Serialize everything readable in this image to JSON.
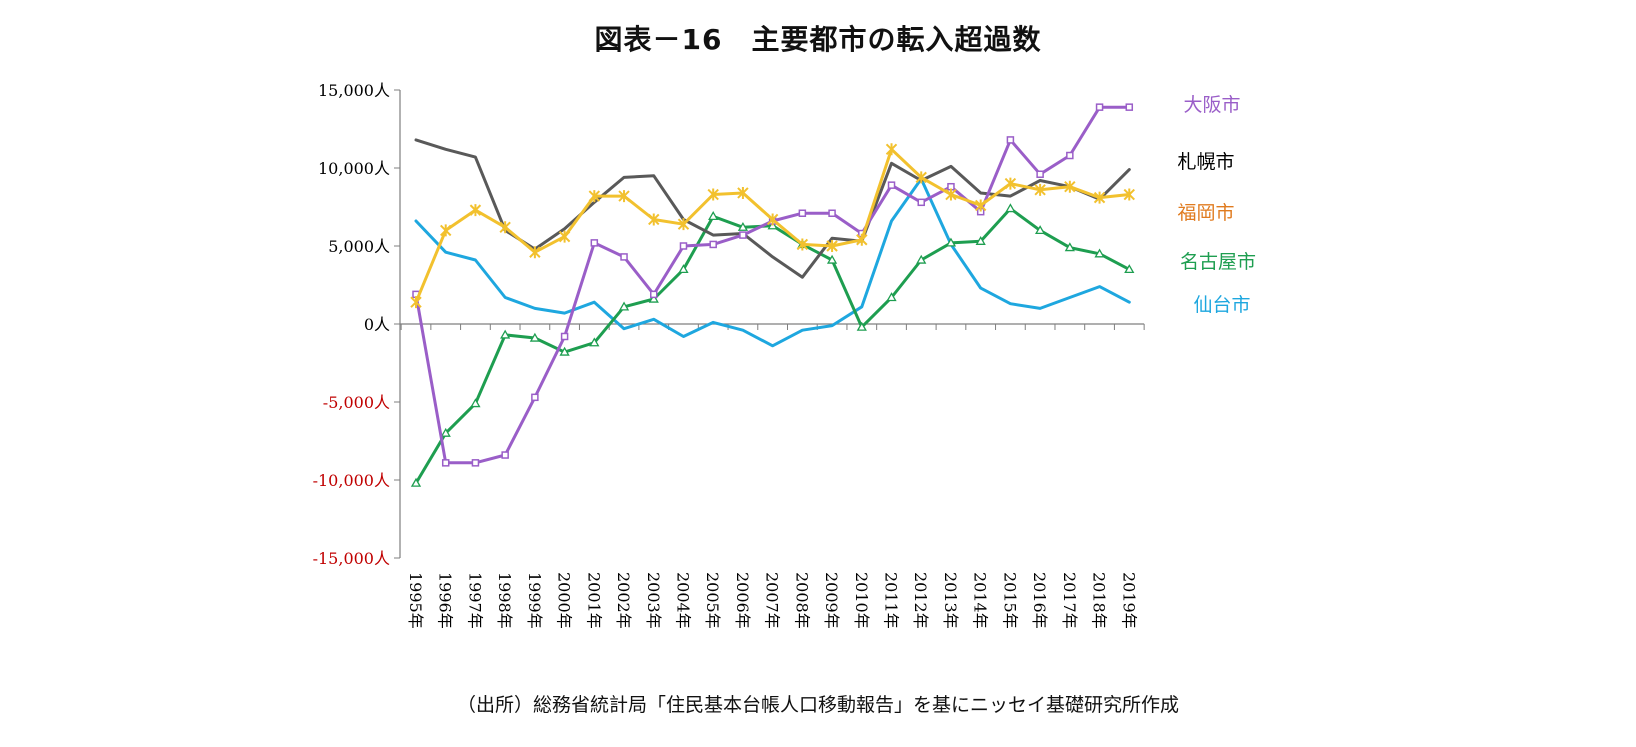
{
  "title": "図表－16　主要都市の転入超過数",
  "source": "（出所）総務省統計局「住民基本台帳人口移動報告」を基にニッセイ基礎研究所作成",
  "colors": {
    "axis": "#7f7f7f",
    "tick_positive": "#000000",
    "tick_negative": "#c00000"
  },
  "chart_data": {
    "type": "line",
    "title": "図表－16　主要都市の転入超過数",
    "xlabel": "",
    "ylabel": "",
    "ylim": [
      -15000,
      15000
    ],
    "y_ticks": [
      15000,
      10000,
      5000,
      0,
      -5000,
      -10000,
      -15000
    ],
    "y_tick_labels": [
      "15,000人",
      "10,000人",
      "5,000人",
      "0人",
      "-5,000人",
      "-10,000人",
      "-15,000人"
    ],
    "categories": [
      "1995年",
      "1996年",
      "1997年",
      "1998年",
      "1999年",
      "2000年",
      "2001年",
      "2002年",
      "2003年",
      "2004年",
      "2005年",
      "2006年",
      "2007年",
      "2008年",
      "2009年",
      "2010年",
      "2011年",
      "2012年",
      "2013年",
      "2014年",
      "2015年",
      "2016年",
      "2017年",
      "2018年",
      "2019年"
    ],
    "grid": false,
    "legend": "right-end labels",
    "series": [
      {
        "name": "大阪市",
        "color": "#9a5ec8",
        "marker": "square",
        "values": [
          1900,
          -8900,
          -8900,
          -8400,
          -4700,
          -800,
          5200,
          4300,
          1900,
          5000,
          5100,
          5700,
          6600,
          7100,
          7100,
          5800,
          8900,
          7800,
          8800,
          7200,
          11800,
          9600,
          10800,
          13900,
          13900
        ]
      },
      {
        "name": "札幌市",
        "color": "#595959",
        "marker": "none",
        "values": [
          11800,
          11200,
          10700,
          6000,
          4800,
          6100,
          7800,
          9400,
          9500,
          6700,
          5700,
          5800,
          4300,
          3000,
          5500,
          5300,
          10300,
          9200,
          10100,
          8400,
          8200,
          9200,
          8800,
          8000,
          9900
        ]
      },
      {
        "name": "福岡市",
        "color": "#f2c12e",
        "marker": "star",
        "values": [
          1400,
          6000,
          7300,
          6200,
          4600,
          5600,
          8200,
          8200,
          6700,
          6400,
          8300,
          8400,
          6700,
          5100,
          5000,
          5400,
          11200,
          9400,
          8300,
          7600,
          9000,
          8600,
          8800,
          8100,
          8300
        ]
      },
      {
        "name": "名古屋市",
        "color": "#1e9e50",
        "marker": "triangle",
        "values": [
          -10200,
          -7000,
          -5100,
          -700,
          -900,
          -1800,
          -1200,
          1100,
          1600,
          3500,
          6900,
          6200,
          6300,
          5100,
          4100,
          -200,
          1700,
          4100,
          5200,
          5300,
          7400,
          6000,
          4900,
          4500,
          3500
        ]
      },
      {
        "name": "仙台市",
        "color": "#1ea7df",
        "marker": "none",
        "values": [
          6600,
          4600,
          4100,
          1700,
          1000,
          700,
          1400,
          -300,
          300,
          -800,
          100,
          -400,
          -1400,
          -400,
          -100,
          1100,
          6600,
          9300,
          5100,
          2300,
          1300,
          1000,
          1700,
          2400,
          1400
        ]
      }
    ]
  }
}
